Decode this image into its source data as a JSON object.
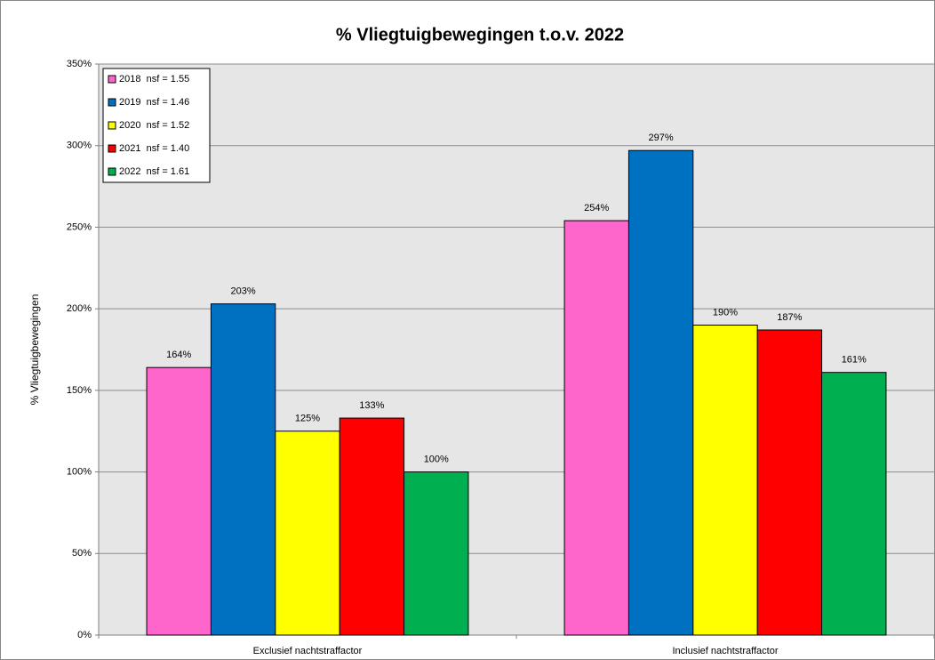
{
  "chart_data": {
    "type": "bar",
    "title": "% Vliegtuigbewegingen t.o.v. 2022",
    "y_label": "% Vliegtuigbewegingen",
    "categories": [
      "Exclusief nachtstraffactor",
      "Inclusief nachtstraffactor"
    ],
    "series": [
      {
        "name": "2018  nsf = 1.55",
        "color": "#ff66cc",
        "values": [
          164,
          254
        ],
        "value_labels": [
          "164%",
          "254%"
        ]
      },
      {
        "name": "2019  nsf = 1.46",
        "color": "#0070c0",
        "values": [
          203,
          297
        ],
        "value_labels": [
          "203%",
          "297%"
        ]
      },
      {
        "name": "2020  nsf = 1.52",
        "color": "#ffff00",
        "values": [
          125,
          190
        ],
        "value_labels": [
          "125%",
          "190%"
        ]
      },
      {
        "name": "2021  nsf = 1.40",
        "color": "#ff0000",
        "values": [
          133,
          187
        ],
        "value_labels": [
          "133%",
          "187%"
        ]
      },
      {
        "name": "2022  nsf = 1.61",
        "color": "#00b050",
        "values": [
          100,
          161
        ],
        "value_labels": [
          "100%",
          "161%"
        ]
      }
    ],
    "ylim": [
      0,
      350
    ],
    "yticks": [
      {
        "value": 0,
        "label": "0%"
      },
      {
        "value": 50,
        "label": "50%"
      },
      {
        "value": 100,
        "label": "100%"
      },
      {
        "value": 150,
        "label": "150%"
      },
      {
        "value": 200,
        "label": "200%"
      },
      {
        "value": 250,
        "label": "250%"
      },
      {
        "value": 300,
        "label": "300%"
      },
      {
        "value": 350,
        "label": "350%"
      }
    ],
    "grid": true,
    "legend": "upper left"
  }
}
